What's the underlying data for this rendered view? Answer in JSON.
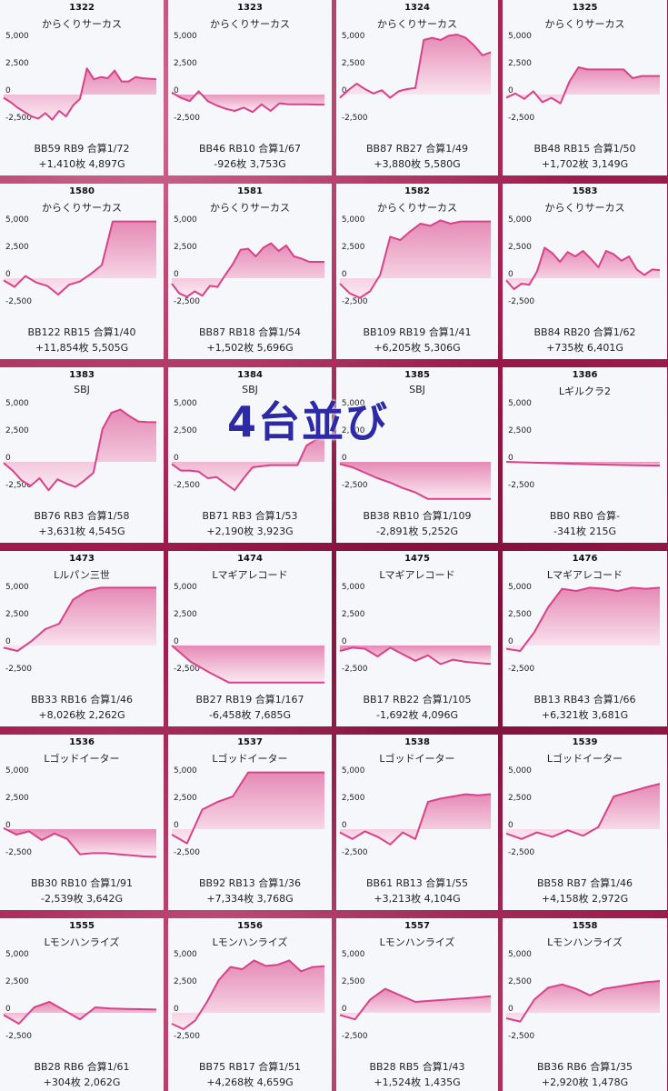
{
  "overlay_text": "4台並び",
  "colors": {
    "line": "#d9418a",
    "fill_top": "#e58ab5",
    "fill_bottom": "#fbeaf2",
    "card_bg": "#f6f7fa"
  },
  "chart_data": [
    {
      "type": "area",
      "machine": "1322",
      "name": "からくりサーカス",
      "stats": "BB59 RB9 合算1/72",
      "result": "+1,410枚 4,897G",
      "yticks": [
        5000,
        2500,
        0,
        -2500
      ],
      "ylim": [
        -3500,
        5500
      ],
      "values": [
        -300,
        -700,
        -1200,
        -1600,
        -2000,
        -2200,
        -1700,
        -2300,
        -1500,
        -2000,
        -1000,
        -400,
        2400,
        1400,
        1600,
        1500,
        2200,
        1200,
        1200,
        1600,
        1500,
        1450,
        1410
      ]
    },
    {
      "type": "area",
      "machine": "1323",
      "name": "からくりサーカス",
      "stats": "BB46 RB10 合算1/67",
      "result": "-926枚 3,753G",
      "yticks": [
        5000,
        2500,
        0,
        -2500
      ],
      "ylim": [
        -3500,
        5500
      ],
      "values": [
        200,
        -300,
        -600,
        300,
        -600,
        -1000,
        -1300,
        -1500,
        -1200,
        -1600,
        -900,
        -1500,
        -800,
        -900,
        -900,
        -900,
        -920,
        -926
      ]
    },
    {
      "type": "area",
      "machine": "1324",
      "name": "からくりサーカス",
      "stats": "BB87 RB27 合算1/49",
      "result": "+3,880枚 5,580G",
      "yticks": [
        5000,
        2500,
        0,
        -2500
      ],
      "ylim": [
        -3500,
        5500
      ],
      "values": [
        -300,
        400,
        1000,
        500,
        100,
        400,
        -300,
        300,
        500,
        600,
        5000,
        5200,
        5000,
        5400,
        5600,
        5200,
        4500,
        3600,
        3880
      ]
    },
    {
      "type": "area",
      "machine": "1325",
      "name": "からくりサーカス",
      "stats": "BB48 RB15 合算1/50",
      "result": "+1,702枚 3,149G",
      "yticks": [
        5000,
        2500,
        0,
        -2500
      ],
      "ylim": [
        -3500,
        5500
      ],
      "values": [
        -300,
        100,
        -400,
        300,
        -700,
        -300,
        -800,
        1200,
        2500,
        2300,
        2300,
        2300,
        2300,
        2300,
        1500,
        1700,
        1700,
        1702
      ]
    },
    {
      "type": "area",
      "machine": "1580",
      "name": "からくりサーカス",
      "stats": "BB122 RB15 合算1/40",
      "result": "+11,854枚 5,505G",
      "yticks": [
        5000,
        2500,
        0,
        -2500
      ],
      "ylim": [
        -3500,
        5500
      ],
      "values": [
        -200,
        -800,
        200,
        -400,
        -700,
        -1500,
        -600,
        -300,
        400,
        1200,
        5200,
        5200,
        5200,
        5200,
        5200
      ]
    },
    {
      "type": "area",
      "machine": "1581",
      "name": "からくりサーカス",
      "stats": "BB87 RB18 合算1/54",
      "result": "+1,502枚 5,696G",
      "yticks": [
        5000,
        2500,
        0,
        -2500
      ],
      "ylim": [
        -3500,
        5500
      ],
      "values": [
        -500,
        -1400,
        -1700,
        -1200,
        -1600,
        -700,
        -800,
        300,
        1300,
        2600,
        2700,
        2000,
        2800,
        3200,
        2500,
        3000,
        2000,
        1800,
        1500,
        1500,
        1502
      ]
    },
    {
      "type": "area",
      "machine": "1582",
      "name": "からくりサーカス",
      "stats": "BB109 RB19 合算1/41",
      "result": "+6,205枚 5,306G",
      "yticks": [
        5000,
        2500,
        0,
        -2500
      ],
      "ylim": [
        -3500,
        5500
      ],
      "values": [
        -500,
        -1400,
        -1800,
        -1200,
        300,
        3800,
        3500,
        4300,
        5000,
        4800,
        5300,
        5000,
        5200,
        5200,
        5200,
        5200
      ]
    },
    {
      "type": "area",
      "machine": "1583",
      "name": "からくりサーカス",
      "stats": "BB84 RB20 合算1/62",
      "result": "+735枚 6,401G",
      "yticks": [
        5000,
        2500,
        0,
        -2500
      ],
      "ylim": [
        -3500,
        5500
      ],
      "values": [
        -200,
        -1000,
        -500,
        -600,
        600,
        2800,
        2300,
        1500,
        2400,
        2000,
        2500,
        1800,
        1000,
        2500,
        2200,
        1600,
        2000,
        800,
        300,
        800,
        735
      ]
    },
    {
      "type": "area",
      "machine": "1383",
      "name": "SBJ",
      "stats": "BB76 RB3 合算1/58",
      "result": "+3,631枚 4,545G",
      "yticks": [
        5000,
        2500,
        0,
        -2500
      ],
      "ylim": [
        -3500,
        5500
      ],
      "values": [
        -100,
        -800,
        -1700,
        -2200,
        -1500,
        -2600,
        -1600,
        -2000,
        -2300,
        -1700,
        -1000,
        3000,
        4500,
        4800,
        4200,
        3700,
        3650,
        3631
      ]
    },
    {
      "type": "area",
      "machine": "1384",
      "name": "SBJ",
      "stats": "BB71 RB3 合算1/53",
      "result": "+2,190枚 3,923G",
      "yticks": [
        5000,
        2500,
        0,
        -2500
      ],
      "ylim": [
        -3500,
        5500
      ],
      "values": [
        -200,
        -800,
        -800,
        -900,
        -1500,
        -1400,
        -2000,
        -2600,
        -1500,
        -500,
        -400,
        -300,
        -300,
        -300,
        -300,
        1500,
        2000,
        2190
      ]
    },
    {
      "type": "area",
      "machine": "1385",
      "name": "SBJ",
      "stats": "BB38 RB10 合算1/109",
      "result": "-2,891枚 5,252G",
      "yticks": [
        5000,
        2500,
        0,
        -2500
      ],
      "ylim": [
        -3500,
        5500
      ],
      "values": [
        -200,
        -500,
        -1000,
        -1500,
        -1900,
        -2400,
        -2800,
        -3400,
        -3400,
        -3400,
        -3400,
        -3400,
        -3400
      ]
    },
    {
      "type": "area",
      "machine": "1386",
      "name": "Lギルクラ2",
      "stats": "BB0 RB0 合算-",
      "result": "-341枚 215G",
      "yticks": [
        5000,
        2500,
        0,
        -2500
      ],
      "ylim": [
        -3500,
        5500
      ],
      "values": [
        0,
        -80,
        -160,
        -240,
        -300,
        -341
      ]
    },
    {
      "type": "area",
      "machine": "1473",
      "name": "Lルパン三世",
      "stats": "BB33 RB16 合算1/46",
      "result": "+8,026枚 2,262G",
      "yticks": [
        5000,
        2500,
        0,
        -2500
      ],
      "ylim": [
        -3500,
        5500
      ],
      "values": [
        -200,
        -500,
        400,
        1500,
        2000,
        4200,
        5000,
        5300,
        5300,
        5300,
        5300,
        5300
      ]
    },
    {
      "type": "area",
      "machine": "1474",
      "name": "Lマギアレコード",
      "stats": "BB27 RB19 合算1/167",
      "result": "-6,458枚 7,685G",
      "yticks": [
        5000,
        2500,
        0,
        -2500
      ],
      "ylim": [
        -3500,
        5500
      ],
      "values": [
        0,
        -1500,
        -2500,
        -3400,
        -3400,
        -3400,
        -3400,
        -3400,
        -3400
      ]
    },
    {
      "type": "area",
      "machine": "1475",
      "name": "Lマギアレコード",
      "stats": "BB17 RB22 合算1/105",
      "result": "-1,692枚 4,096G",
      "yticks": [
        5000,
        2500,
        0,
        -2500
      ],
      "ylim": [
        -3500,
        5500
      ],
      "values": [
        -500,
        -200,
        -300,
        -1000,
        -200,
        -800,
        -1400,
        -900,
        -1700,
        -1300,
        -1500,
        -1600,
        -1692
      ]
    },
    {
      "type": "area",
      "machine": "1476",
      "name": "Lマギアレコード",
      "stats": "BB13 RB43 合算1/66",
      "result": "+6,321枚 3,681G",
      "yticks": [
        5000,
        2500,
        0,
        -2500
      ],
      "ylim": [
        -3500,
        5500
      ],
      "values": [
        -300,
        -500,
        1200,
        3500,
        5200,
        5000,
        5300,
        5200,
        5000,
        5300,
        5200,
        5300
      ]
    },
    {
      "type": "area",
      "machine": "1536",
      "name": "Lゴッドイーター",
      "stats": "BB30 RB10 合算1/91",
      "result": "-2,539枚 3,642G",
      "yticks": [
        5000,
        2500,
        0,
        -2500
      ],
      "ylim": [
        -3500,
        5500
      ],
      "values": [
        100,
        -500,
        -200,
        -1000,
        -400,
        -900,
        -2300,
        -2200,
        -2200,
        -2300,
        -2400,
        -2500,
        -2539
      ]
    },
    {
      "type": "area",
      "machine": "1537",
      "name": "Lゴッドイーター",
      "stats": "BB92 RB13 合算1/36",
      "result": "+7,334枚 3,768G",
      "yticks": [
        5000,
        2500,
        0,
        -2500
      ],
      "ylim": [
        -3500,
        5500
      ],
      "values": [
        -500,
        -1300,
        1800,
        2500,
        3000,
        5200,
        5200,
        5200,
        5200,
        5200,
        5200
      ]
    },
    {
      "type": "area",
      "machine": "1538",
      "name": "Lゴッドイーター",
      "stats": "BB61 RB13 合算1/55",
      "result": "+3,213枚 4,104G",
      "yticks": [
        5000,
        2500,
        0,
        -2500
      ],
      "ylim": [
        -3500,
        5500
      ],
      "values": [
        -300,
        -900,
        -200,
        -700,
        -1400,
        -300,
        -900,
        2500,
        2800,
        3000,
        3200,
        3100,
        3213
      ]
    },
    {
      "type": "area",
      "machine": "1539",
      "name": "Lゴッドイーター",
      "stats": "BB58 RB7 合算1/46",
      "result": "+4,158枚 2,972G",
      "yticks": [
        5000,
        2500,
        0,
        -2500
      ],
      "ylim": [
        -3500,
        5500
      ],
      "values": [
        -400,
        -900,
        -300,
        -700,
        -100,
        -600,
        200,
        3000,
        3400,
        3800,
        4158
      ]
    },
    {
      "type": "area",
      "machine": "1555",
      "name": "Lモンハンライズ",
      "stats": "BB28 RB6 合算1/61",
      "result": "+304枚 2,062G",
      "yticks": [
        5000,
        2500,
        0,
        -2500
      ],
      "ylim": [
        -3500,
        5500
      ],
      "values": [
        -200,
        -1000,
        500,
        1000,
        200,
        -600,
        500,
        400,
        350,
        330,
        304
      ]
    },
    {
      "type": "area",
      "machine": "1556",
      "name": "Lモンハンライズ",
      "stats": "BB75 RB17 合算1/51",
      "result": "+4,268枚 4,659G",
      "yticks": [
        5000,
        2500,
        0,
        -2500
      ],
      "ylim": [
        -3500,
        5500
      ],
      "values": [
        -1000,
        -1500,
        -700,
        1000,
        3000,
        4200,
        4000,
        4800,
        4300,
        4400,
        4800,
        3800,
        4200,
        4268
      ]
    },
    {
      "type": "area",
      "machine": "1557",
      "name": "Lモンハンライズ",
      "stats": "BB28 RB5 合算1/43",
      "result": "+1,524枚 1,435G",
      "yticks": [
        5000,
        2500,
        0,
        -2500
      ],
      "ylim": [
        -3500,
        5500
      ],
      "values": [
        -200,
        -600,
        1200,
        2200,
        1600,
        1000,
        1100,
        1200,
        1300,
        1400,
        1524
      ]
    },
    {
      "type": "area",
      "machine": "1558",
      "name": "Lモンハンライズ",
      "stats": "BB36 RB6 合算1/35",
      "result": "+2,920枚 1,478G",
      "yticks": [
        5000,
        2500,
        0,
        -2500
      ],
      "ylim": [
        -3500,
        5500
      ],
      "values": [
        -500,
        -800,
        1200,
        2300,
        2600,
        2200,
        1600,
        2200,
        2400,
        2600,
        2800,
        2920
      ]
    }
  ]
}
